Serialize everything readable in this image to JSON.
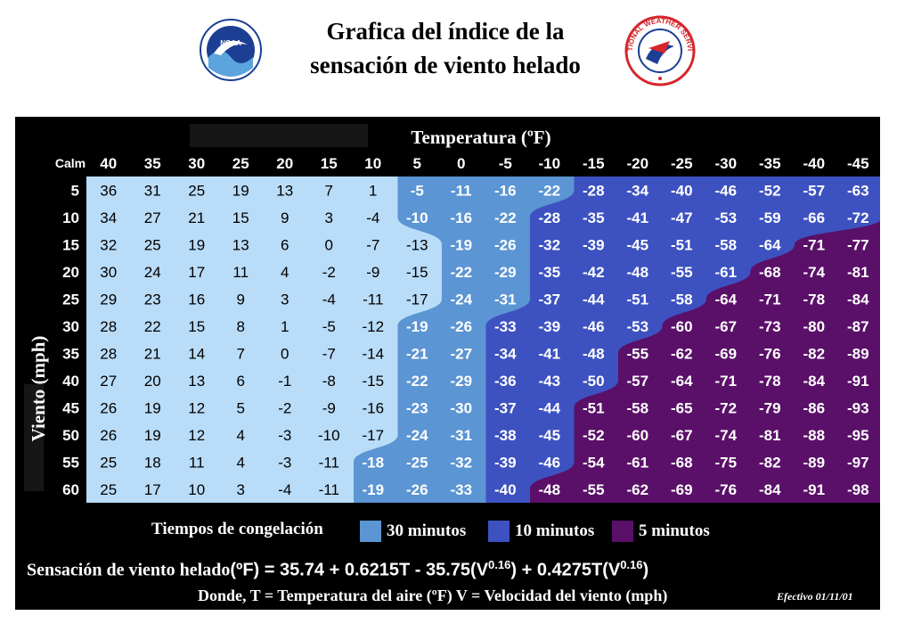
{
  "header": {
    "title_line1": "Grafica del índice de la",
    "title_line2": "sensación de viento helado",
    "noaa_logo_text": "NOAA",
    "nws_logo_text": "NATIONAL WEATHER SERVICE"
  },
  "chart_data": {
    "type": "table",
    "x_title": "Temperatura (ºF)",
    "y_title": "Viento (mph)",
    "corner_label": "Calm",
    "temperatures": [
      40,
      35,
      30,
      25,
      20,
      15,
      10,
      5,
      0,
      -5,
      -10,
      -15,
      -20,
      -25,
      -30,
      -35,
      -40,
      -45
    ],
    "wind_speeds": [
      5,
      10,
      15,
      20,
      25,
      30,
      35,
      40,
      45,
      50,
      55,
      60
    ],
    "values": [
      [
        36,
        31,
        25,
        19,
        13,
        7,
        1,
        -5,
        -11,
        -16,
        -22,
        -28,
        -34,
        -40,
        -46,
        -52,
        -57,
        -63
      ],
      [
        34,
        27,
        21,
        15,
        9,
        3,
        -4,
        -10,
        -16,
        -22,
        -28,
        -35,
        -41,
        -47,
        -53,
        -59,
        -66,
        -72
      ],
      [
        32,
        25,
        19,
        13,
        6,
        0,
        -7,
        -13,
        -19,
        -26,
        -32,
        -39,
        -45,
        -51,
        -58,
        -64,
        -71,
        -77
      ],
      [
        30,
        24,
        17,
        11,
        4,
        -2,
        -9,
        -15,
        -22,
        -29,
        -35,
        -42,
        -48,
        -55,
        -61,
        -68,
        -74,
        -81
      ],
      [
        29,
        23,
        16,
        9,
        3,
        -4,
        -11,
        -17,
        -24,
        -31,
        -37,
        -44,
        -51,
        -58,
        -64,
        -71,
        -78,
        -84
      ],
      [
        28,
        22,
        15,
        8,
        1,
        -5,
        -12,
        -19,
        -26,
        -33,
        -39,
        -46,
        -53,
        -60,
        -67,
        -73,
        -80,
        -87
      ],
      [
        28,
        21,
        14,
        7,
        0,
        -7,
        -14,
        -21,
        -27,
        -34,
        -41,
        -48,
        -55,
        -62,
        -69,
        -76,
        -82,
        -89
      ],
      [
        27,
        20,
        13,
        6,
        -1,
        -8,
        -15,
        -22,
        -29,
        -36,
        -43,
        -50,
        -57,
        -64,
        -71,
        -78,
        -84,
        -91
      ],
      [
        26,
        19,
        12,
        5,
        -2,
        -9,
        -16,
        -23,
        -30,
        -37,
        -44,
        -51,
        -58,
        -65,
        -72,
        -79,
        -86,
        -93
      ],
      [
        26,
        19,
        12,
        4,
        -3,
        -10,
        -17,
        -24,
        -31,
        -38,
        -45,
        -52,
        -60,
        -67,
        -74,
        -81,
        -88,
        -95
      ],
      [
        25,
        18,
        11,
        4,
        -3,
        -11,
        -18,
        -25,
        -32,
        -39,
        -46,
        -54,
        -61,
        -68,
        -75,
        -82,
        -89,
        -97
      ],
      [
        25,
        17,
        10,
        3,
        -4,
        -11,
        -19,
        -26,
        -33,
        -40,
        -48,
        -55,
        -62,
        -69,
        -76,
        -84,
        -91,
        -98
      ]
    ],
    "zones": [
      {
        "name": "30 minutos",
        "color": "#5b95d3",
        "start_col": [
          7,
          7,
          8,
          8,
          8,
          7,
          7,
          7,
          7,
          7,
          6,
          6
        ]
      },
      {
        "name": "10 minutos",
        "color": "#3d52c0",
        "start_col": [
          11,
          10,
          10,
          10,
          10,
          9,
          9,
          9,
          9,
          9,
          9,
          9
        ]
      },
      {
        "name": "5 minutos",
        "color": "#5a1068",
        "start_col": [
          99,
          99,
          16,
          15,
          14,
          13,
          12,
          12,
          11,
          11,
          11,
          10
        ]
      }
    ],
    "safe_color": "#b9dcf8"
  },
  "legend": {
    "label": "Tiempos de congelación",
    "items": [
      {
        "text": "30 minutos",
        "color": "#5b95d3"
      },
      {
        "text": "10 minutos",
        "color": "#3d52c0"
      },
      {
        "text": "5 minutos",
        "color": "#5a1068"
      }
    ]
  },
  "formula": {
    "prefix": "Sensación de viento helado",
    "expression": "(ºF) = 35.74 + 0.6215T - 35.75(V",
    "exp1": "0.16",
    "middle": ") + 0.4275T(V",
    "exp2": "0.16",
    "suffix": ")"
  },
  "where_text": "Donde, T = Temperatura del aire (ºF)  V = Velocidad del viento (mph)",
  "effective_text": "Efectivo 01/11/01"
}
